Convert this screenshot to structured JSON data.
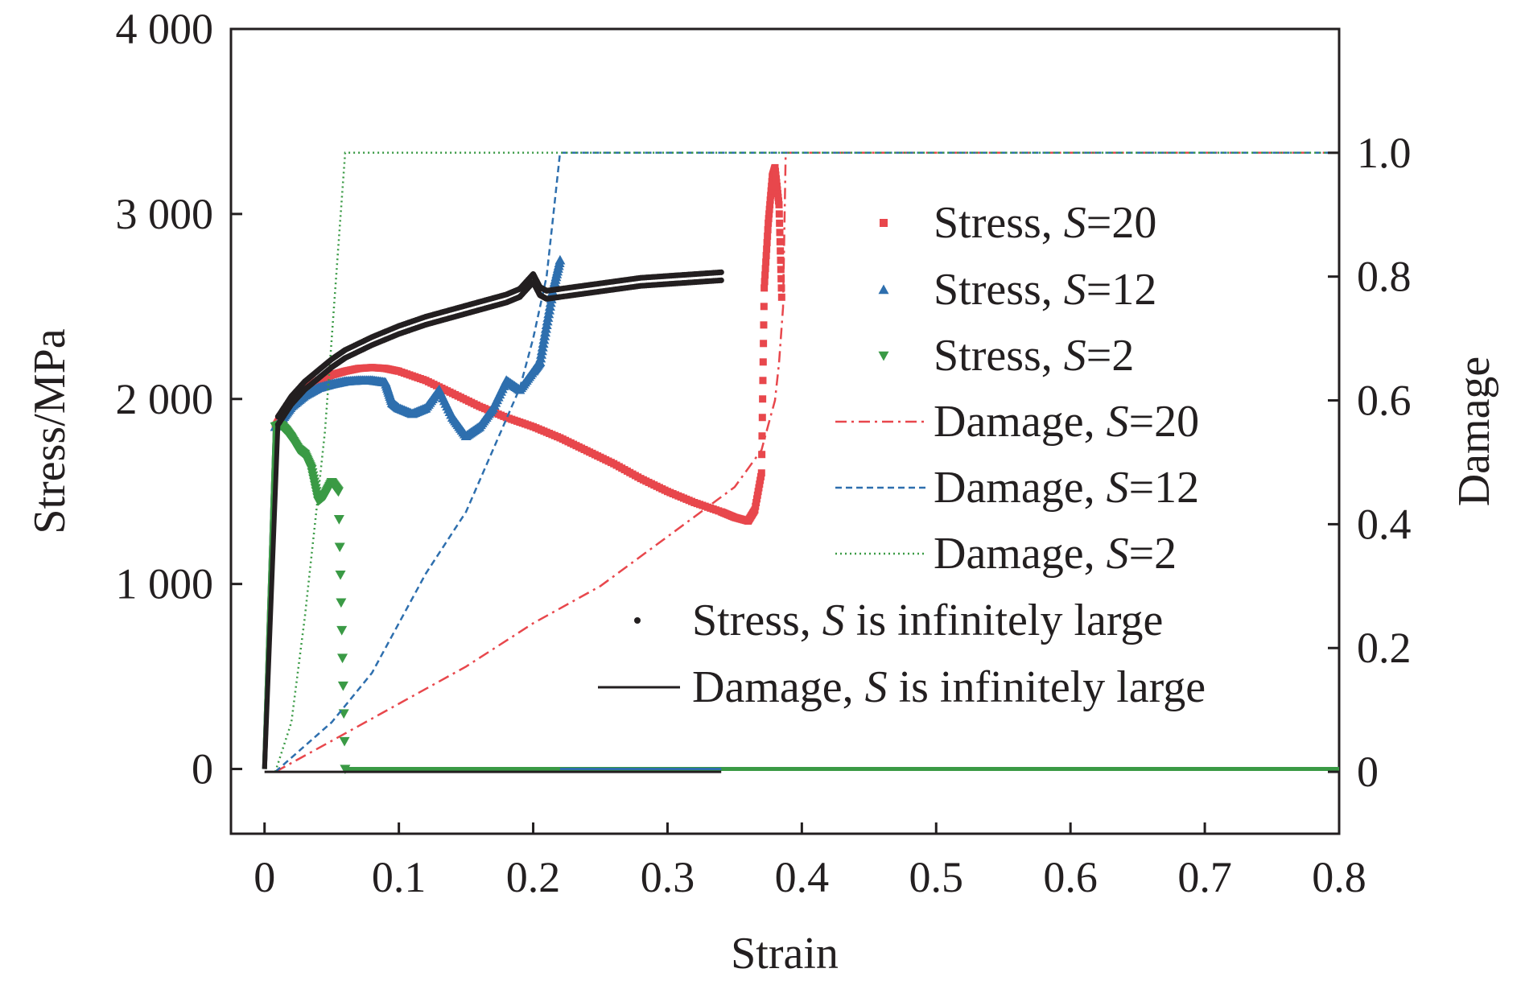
{
  "chart_data": {
    "type": "line",
    "title": "",
    "xlabel": "Strain",
    "ylabel": "Stress/MPa",
    "ylabel_right": "Damage",
    "xlim": [
      -0.025,
      0.8
    ],
    "ylim": [
      -350,
      4000
    ],
    "ylim_right": [
      -0.1,
      1.2
    ],
    "x_ticks": [
      0,
      0.1,
      0.2,
      0.3,
      0.4,
      0.5,
      0.6,
      0.7,
      0.8
    ],
    "x_tick_labels": [
      "0",
      "0.1",
      "0.2",
      "0.3",
      "0.4",
      "0.5",
      "0.6",
      "0.7",
      "0.8"
    ],
    "y_ticks": [
      0,
      1000,
      2000,
      3000,
      4000
    ],
    "y_tick_labels": [
      "0",
      "1 000",
      "2 000",
      "3 000",
      "4 000"
    ],
    "y_right_ticks": [
      0,
      0.2,
      0.4,
      0.6,
      0.8,
      1.0
    ],
    "y_right_tick_labels": [
      "0",
      "0.2",
      "0.4",
      "0.6",
      "0.8",
      "1.0"
    ],
    "grid": false,
    "legend_position": "right",
    "colors": {
      "red": "#e8474c",
      "blue": "#2e6fae",
      "green": "#3a9a45",
      "black": "#231f20"
    },
    "series": [
      {
        "name": "Stress, S=20",
        "legend_prefix": "Stress, ",
        "legend_var": "S",
        "legend_suffix": "=20",
        "axis": "left",
        "style": "square",
        "color": "#e8474c",
        "x": [
          0,
          0.005,
          0.008,
          0.012,
          0.02,
          0.03,
          0.04,
          0.05,
          0.06,
          0.07,
          0.08,
          0.09,
          0.1,
          0.12,
          0.14,
          0.16,
          0.18,
          0.2,
          0.22,
          0.24,
          0.26,
          0.28,
          0.3,
          0.32,
          0.34,
          0.35,
          0.36,
          0.365,
          0.37,
          0.372,
          0.375,
          0.378,
          0.38,
          0.383,
          0.385
        ],
        "y": [
          0,
          1200,
          1850,
          1900,
          1980,
          2050,
          2100,
          2130,
          2150,
          2165,
          2170,
          2165,
          2150,
          2100,
          2030,
          1960,
          1900,
          1850,
          1790,
          1720,
          1650,
          1570,
          1500,
          1440,
          1390,
          1360,
          1340,
          1400,
          1600,
          2600,
          2950,
          3200,
          3250,
          3050,
          2550
        ]
      },
      {
        "name": "Stress, S=12",
        "legend_prefix": "Stress, ",
        "legend_var": "S",
        "legend_suffix": "=12",
        "axis": "left",
        "style": "triangle-up",
        "color": "#2e6fae",
        "x": [
          0,
          0.005,
          0.008,
          0.012,
          0.02,
          0.03,
          0.04,
          0.05,
          0.06,
          0.07,
          0.08,
          0.09,
          0.095,
          0.1,
          0.11,
          0.12,
          0.13,
          0.14,
          0.15,
          0.16,
          0.17,
          0.18,
          0.19,
          0.2,
          0.205,
          0.21,
          0.215,
          0.22
        ],
        "y": [
          0,
          1200,
          1850,
          1880,
          1960,
          2020,
          2060,
          2080,
          2095,
          2100,
          2100,
          2090,
          1980,
          1950,
          1920,
          1950,
          2050,
          1900,
          1800,
          1850,
          1950,
          2100,
          2050,
          2150,
          2200,
          2400,
          2600,
          2750
        ]
      },
      {
        "name": "Stress, S=2",
        "legend_prefix": "Stress, ",
        "legend_var": "S",
        "legend_suffix": "=2",
        "axis": "left",
        "style": "triangle-down",
        "color": "#3a9a45",
        "x": [
          0,
          0.005,
          0.008,
          0.012,
          0.016,
          0.02,
          0.025,
          0.03,
          0.035,
          0.04,
          0.045,
          0.05,
          0.055,
          0.06
        ],
        "y": [
          0,
          1200,
          1850,
          1860,
          1830,
          1790,
          1730,
          1700,
          1620,
          1450,
          1480,
          1550,
          1500,
          0
        ]
      },
      {
        "name": "Damage, S=20",
        "legend_prefix": "Damage, ",
        "legend_var": "S",
        "legend_suffix": "=20",
        "axis": "right",
        "style": "dashdot",
        "color": "#e8474c",
        "x": [
          0.008,
          0.05,
          0.1,
          0.15,
          0.2,
          0.25,
          0.3,
          0.35,
          0.36,
          0.37,
          0.375,
          0.38,
          0.383,
          0.386,
          0.388,
          0.8
        ],
        "y": [
          0,
          0.05,
          0.11,
          0.17,
          0.24,
          0.3,
          0.38,
          0.46,
          0.49,
          0.52,
          0.56,
          0.6,
          0.66,
          0.75,
          1.0,
          1.0
        ]
      },
      {
        "name": "Damage, S=12",
        "legend_prefix": "Damage, ",
        "legend_var": "S",
        "legend_suffix": "=12",
        "axis": "right",
        "style": "dashed",
        "color": "#2e6fae",
        "x": [
          0.008,
          0.05,
          0.08,
          0.1,
          0.12,
          0.15,
          0.17,
          0.19,
          0.2,
          0.21,
          0.215,
          0.22,
          0.8
        ],
        "y": [
          0,
          0.08,
          0.16,
          0.24,
          0.32,
          0.42,
          0.52,
          0.62,
          0.7,
          0.8,
          0.9,
          1.0,
          1.0
        ]
      },
      {
        "name": "Damage, S=2",
        "legend_prefix": "Damage, ",
        "legend_var": "S",
        "legend_suffix": "=2",
        "axis": "right",
        "style": "dotted",
        "color": "#3a9a45",
        "x": [
          0.008,
          0.02,
          0.03,
          0.04,
          0.045,
          0.05,
          0.055,
          0.06,
          0.8
        ],
        "y": [
          0,
          0.08,
          0.25,
          0.45,
          0.55,
          0.7,
          0.85,
          1.0,
          1.0
        ]
      },
      {
        "name": "Stress, S is infinitely large",
        "legend_prefix": "Stress, ",
        "legend_var": "S",
        "legend_suffix": " is infinitely large",
        "axis": "left",
        "style": "dot",
        "color": "#231f20",
        "x": [
          0,
          0.005,
          0.01,
          0.02,
          0.03,
          0.04,
          0.05,
          0.06,
          0.08,
          0.1,
          0.12,
          0.14,
          0.16,
          0.18,
          0.19,
          0.2,
          0.205,
          0.21,
          0.22,
          0.24,
          0.26,
          0.28,
          0.3,
          0.32,
          0.34
        ],
        "y": [
          0,
          1200,
          1870,
          1980,
          2060,
          2120,
          2180,
          2230,
          2300,
          2360,
          2410,
          2450,
          2490,
          2530,
          2560,
          2640,
          2570,
          2550,
          2560,
          2580,
          2600,
          2620,
          2630,
          2640,
          2650
        ]
      },
      {
        "name": "Damage, S is infinitely large",
        "legend_prefix": "Damage, ",
        "legend_var": "S",
        "legend_suffix": " is infinitely large",
        "axis": "right",
        "style": "solid",
        "color": "#231f20",
        "x": [
          0,
          0.34
        ],
        "y": [
          0,
          0
        ]
      }
    ]
  }
}
